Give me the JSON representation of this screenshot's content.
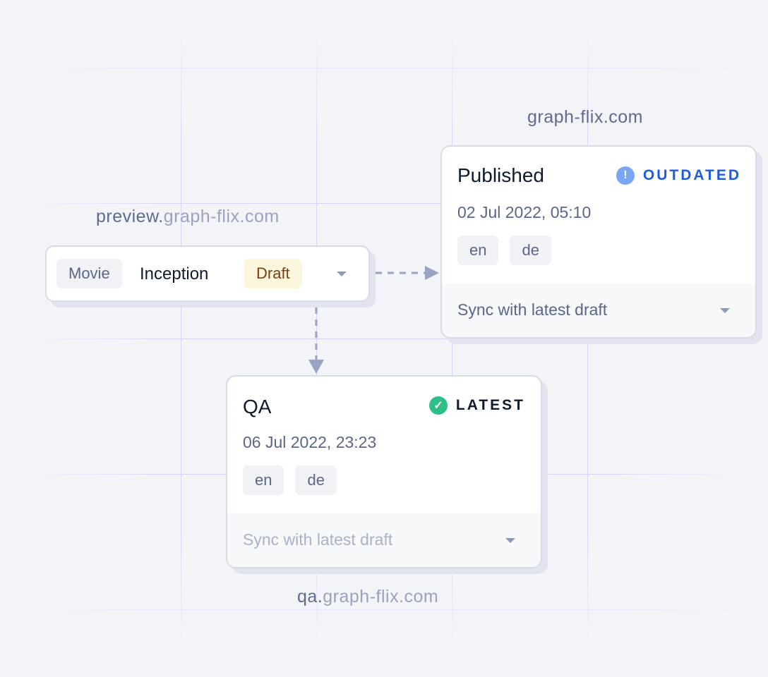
{
  "domains": {
    "preview": {
      "prefix": "preview.",
      "rest": "graph-flix.com"
    },
    "published": "graph-flix.com",
    "qa": {
      "prefix": "qa.",
      "rest": "graph-flix.com"
    }
  },
  "draft_node": {
    "type": "Movie",
    "name": "Inception",
    "status": "Draft"
  },
  "published_card": {
    "title": "Published",
    "status": "OUTDATED",
    "status_icon": "exclamation-icon",
    "status_color": "#1d5ce0",
    "date": "02 Jul 2022, 05:10",
    "locales": [
      "en",
      "de"
    ],
    "action": "Sync with latest draft"
  },
  "qa_card": {
    "title": "QA",
    "status": "LATEST",
    "status_icon": "check-icon",
    "status_color": "#2dbf85",
    "date": "06 Jul 2022, 23:23",
    "locales": [
      "en",
      "de"
    ],
    "action": "Sync with latest draft"
  }
}
